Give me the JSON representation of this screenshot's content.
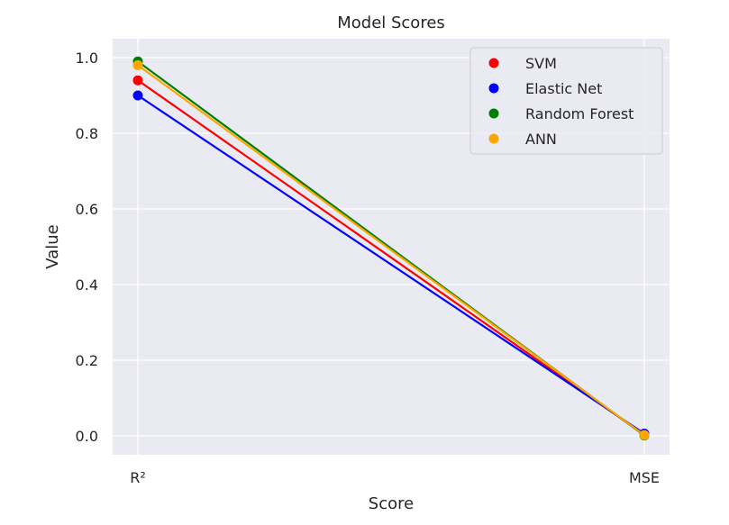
{
  "chart_data": {
    "type": "line",
    "title": "Model Scores",
    "xlabel": "Score",
    "ylabel": "Value",
    "categories": [
      "R²",
      "MSE"
    ],
    "ylim": [
      -0.05,
      1.05
    ],
    "yticks": [
      "0.0",
      "0.2",
      "0.4",
      "0.6",
      "0.8",
      "1.0"
    ],
    "grid": true,
    "legend_position": "top-right",
    "series": [
      {
        "name": "SVM",
        "color": "#ff0000",
        "values": [
          0.94,
          0.003
        ]
      },
      {
        "name": "Elastic Net",
        "color": "#0000ff",
        "values": [
          0.9,
          0.006
        ]
      },
      {
        "name": "Random Forest",
        "color": "#008000",
        "values": [
          0.99,
          0.001
        ]
      },
      {
        "name": "ANN",
        "color": "#ffa500",
        "values": [
          0.98,
          0.002
        ]
      }
    ]
  }
}
